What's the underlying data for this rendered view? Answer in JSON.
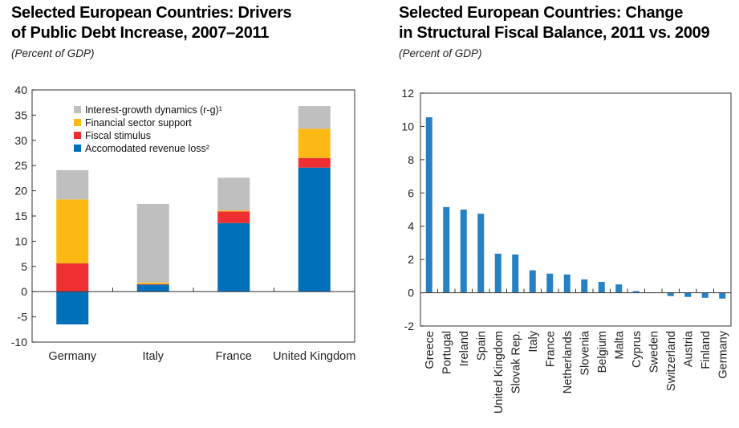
{
  "chart_data": [
    {
      "type": "bar",
      "stacked": true,
      "title": "Selected European Countries: Drivers of Public Debt Increase, 2007–2011",
      "title_lines": [
        "Selected European Countries: Drivers",
        "of Public Debt Increase, 2007–2011"
      ],
      "subtitle": "(Percent of GDP)",
      "xlabel": "",
      "ylabel": "",
      "ylim": [
        -10,
        40
      ],
      "yticks": [
        40,
        35,
        30,
        25,
        20,
        15,
        10,
        5,
        0,
        -5,
        -10
      ],
      "categories": [
        "Germany",
        "Italy",
        "France",
        "United Kingdom"
      ],
      "legend_position": "top-left",
      "series": [
        {
          "name": "Accomodated revenue loss²",
          "color": "#0070BA",
          "values": [
            -6.5,
            1.4,
            13.6,
            24.6
          ]
        },
        {
          "name": "Fiscal stimulus",
          "color": "#EE2E31",
          "values": [
            5.6,
            0.1,
            2.3,
            1.9
          ]
        },
        {
          "name": "Financial sector support",
          "color": "#FDB913",
          "values": [
            12.7,
            0.3,
            0.2,
            5.8
          ]
        },
        {
          "name": "Interest-growth dynamics (r-g)¹",
          "color": "#BFBFBF",
          "values": [
            5.8,
            15.6,
            6.5,
            4.5
          ]
        }
      ],
      "legend_order": [
        "Interest-growth dynamics (r-g)¹",
        "Financial sector support",
        "Fiscal stimulus",
        "Accomodated revenue loss²"
      ],
      "grid": false
    },
    {
      "type": "bar",
      "title": "Selected European Countries: Change in Structural Fiscal Balance, 2011 vs. 2009",
      "title_lines": [
        "Selected European Countries: Change",
        "in Structural Fiscal Balance, 2011 vs. 2009"
      ],
      "subtitle": "(Percent of GDP)",
      "xlabel": "",
      "ylabel": "",
      "ylim": [
        -2,
        12
      ],
      "yticks": [
        12,
        10,
        8,
        6,
        4,
        2,
        0,
        -2
      ],
      "categories": [
        "Greece",
        "Portugal",
        "Ireland",
        "Spain",
        "United Kingdom",
        "Slovak Rep.",
        "Italy",
        "France",
        "Netherlands",
        "Slovenia",
        "Belgium",
        "Malta",
        "Cyprus",
        "Sweden",
        "Switzerland",
        "Austria",
        "Finland",
        "Germany"
      ],
      "values": [
        10.55,
        5.15,
        5.0,
        4.75,
        2.35,
        2.3,
        1.35,
        1.15,
        1.1,
        0.8,
        0.65,
        0.5,
        0.1,
        0.0,
        -0.2,
        -0.25,
        -0.3,
        -0.35
      ],
      "color": "#2581C4",
      "grid": false
    }
  ]
}
